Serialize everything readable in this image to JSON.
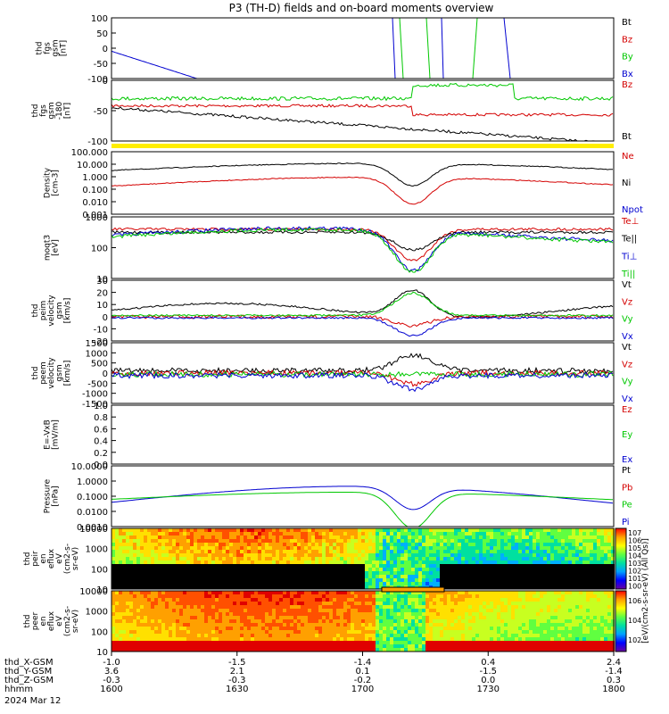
{
  "title": "P3 (TH-D) fields and on-board moments overview",
  "chart_data": [
    {
      "type": "line",
      "ylabel": [
        "thd",
        "fgs",
        "gsm",
        "[nT]"
      ],
      "ylim": [
        -100,
        100
      ],
      "yticks": [
        "100",
        "50",
        "0",
        "-50",
        "-100"
      ],
      "legend": [
        {
          "label": "Bt",
          "color": "#000000"
        },
        {
          "label": "Bz",
          "color": "#d40000"
        },
        {
          "label": "By",
          "color": "#00c800"
        },
        {
          "label": "Bx",
          "color": "#0000d0"
        }
      ]
    },
    {
      "type": "line",
      "ylabel": [
        "thd",
        "fgs",
        "gsm",
        "-180",
        "[nT]"
      ],
      "ylim": [
        -120,
        40
      ],
      "yticks": [
        "0",
        "-50",
        "-100"
      ],
      "legend": [
        {
          "label": "Bz",
          "color": "#d40000"
        },
        {
          "label": "Bt",
          "color": "#000000"
        }
      ]
    },
    {
      "type": "line",
      "ylabel": [
        "Density",
        "[cm-3]"
      ],
      "scale": "log",
      "ylim": [
        0.001,
        100
      ],
      "yticks": [
        "100.000",
        "10.000",
        "1.000",
        "0.100",
        "0.010",
        "0.001"
      ],
      "legend": [
        {
          "label": "Ne",
          "color": "#d40000"
        },
        {
          "label": "Ni",
          "color": "#000000"
        },
        {
          "label": "Npot",
          "color": "#0000d0"
        }
      ]
    },
    {
      "type": "line",
      "ylabel": [
        "moqt3",
        "[eV]"
      ],
      "scale": "log",
      "yticks": [
        "1000",
        "100",
        "10"
      ],
      "legend": [
        {
          "label": "Te⊥",
          "color": "#d40000"
        },
        {
          "label": "Te||",
          "color": "#000000"
        },
        {
          "label": "Ti⊥",
          "color": "#0000d0"
        },
        {
          "label": "Ti||",
          "color": "#00c800"
        }
      ]
    },
    {
      "type": "line",
      "ylabel": [
        "thd",
        "peim",
        "velocity",
        "gsm",
        "[km/s]"
      ],
      "ylim": [
        -20,
        30
      ],
      "yticks": [
        "30",
        "20",
        "10",
        "0",
        "-10",
        "-20"
      ],
      "legend": [
        {
          "label": "Vt",
          "color": "#000000"
        },
        {
          "label": "Vz",
          "color": "#d40000"
        },
        {
          "label": "Vy",
          "color": "#00c800"
        },
        {
          "label": "Vx",
          "color": "#0000d0"
        }
      ]
    },
    {
      "type": "line",
      "ylabel": [
        "thd",
        "peem",
        "velocity",
        "gsm",
        "[km/s]"
      ],
      "ylim": [
        -1500,
        1500
      ],
      "yticks": [
        "1500",
        "1000",
        "500",
        "0",
        "-500",
        "-1000",
        "-1500"
      ],
      "legend": [
        {
          "label": "Vt",
          "color": "#000000"
        },
        {
          "label": "Vz",
          "color": "#d40000"
        },
        {
          "label": "Vy",
          "color": "#00c800"
        },
        {
          "label": "Vx",
          "color": "#0000d0"
        }
      ]
    },
    {
      "type": "line",
      "ylabel": [
        "E=-VxB",
        "[mV/m]"
      ],
      "ylim": [
        0,
        1
      ],
      "yticks": [
        "1.0",
        "0.8",
        "0.6",
        "0.4",
        "0.2",
        "0.0"
      ],
      "legend": [
        {
          "label": "Ez",
          "color": "#d40000"
        },
        {
          "label": "Ey",
          "color": "#00c800"
        },
        {
          "label": "Ex",
          "color": "#0000d0"
        }
      ]
    },
    {
      "type": "line",
      "ylabel": [
        "Pressure",
        "[nPa]"
      ],
      "scale": "log",
      "yticks": [
        "10.0000",
        "1.0000",
        "0.1000",
        "0.0100",
        "0.0010"
      ],
      "legend": [
        {
          "label": "Pt",
          "color": "#000000"
        },
        {
          "label": "Pb",
          "color": "#d40000"
        },
        {
          "label": "Pe",
          "color": "#00c800"
        },
        {
          "label": "Pi",
          "color": "#0000d0"
        }
      ]
    },
    {
      "type": "heatmap",
      "ylabel": [
        "thd",
        "peir",
        "en",
        "eflux",
        "eV",
        "(cm2-s-",
        "sr-eV)"
      ],
      "yticks": [
        "10000",
        "1000",
        "100",
        "10"
      ]
    },
    {
      "type": "heatmap",
      "ylabel": [
        "thd",
        "peer",
        "en",
        "eflux",
        "eV",
        "(cm2-s-",
        "sr-eV)"
      ],
      "yticks": [
        "10000",
        "1000",
        "100",
        "10"
      ]
    }
  ],
  "colorbar": {
    "label": "[eV/(cm2-s-sr-eV) (All Qs)]",
    "ticks_top": [
      "7",
      "6",
      "5",
      "4",
      "3",
      "2",
      "1",
      "0"
    ],
    "ticks_bottom": [
      "6",
      "4",
      "2"
    ]
  },
  "xaxis": {
    "tick_rows": [
      {
        "label": "thd_X-GSM",
        "values": [
          "-1.0",
          "-1.5",
          "-1.4",
          "0.4",
          "2.4"
        ]
      },
      {
        "label": "thd_Y-GSM",
        "values": [
          "3.6",
          "2.1",
          "0.1",
          "-1.5",
          "-1.4"
        ]
      },
      {
        "label": "thd_Z-GSM",
        "values": [
          "-0.3",
          "-0.3",
          "-0.2",
          "0.0",
          "0.3"
        ]
      },
      {
        "label": "hhmm",
        "values": [
          "1600",
          "1630",
          "1700",
          "1730",
          "1800"
        ]
      }
    ],
    "date": "2024 Mar 12"
  }
}
